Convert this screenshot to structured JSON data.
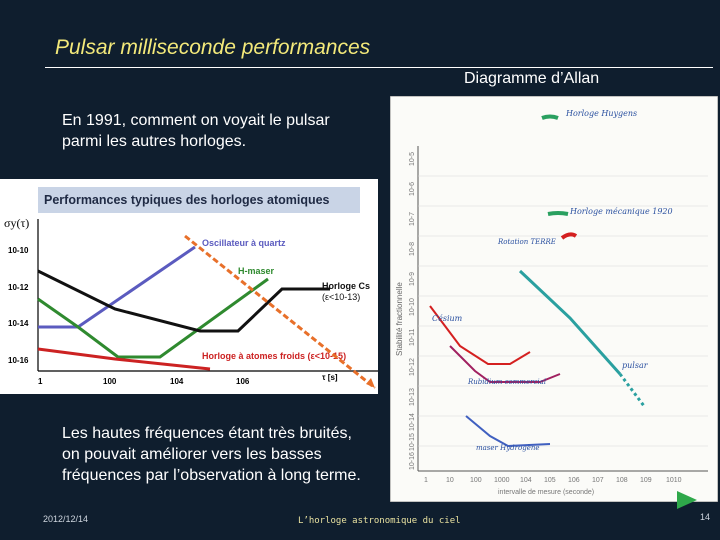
{
  "slide": {
    "title": "Pulsar milliseconde performances",
    "right_label": "Diagramme d’Allan",
    "paragraph_1": "En 1991, comment on voyait le pulsar parmi les autres horloges.",
    "paragraph_2": "Les hautes fréquences étant très bruités, on pouvait améliorer vers les basses fréquences par l’observation à long terme.",
    "footer_date": "2012/12/14",
    "footer_center": "L’horloge astronomique du ciel",
    "page_number": "14"
  },
  "left_figure": {
    "title": "Performances typiques des horloges atomiques",
    "y_axis_label": "σy(τ)",
    "x_axis_label": "τ [s]",
    "y_ticks": [
      "10-10",
      "10-12",
      "10-14",
      "10-16"
    ],
    "x_ticks": [
      "1",
      "100",
      "104",
      "106"
    ],
    "labels": {
      "quartz": "Oscillateur à quartz",
      "hmaser": "H-maser",
      "cesium_1": "Horloge Cs",
      "cesium_2": "(ε<10-13)",
      "cold": "Horloge à atomes froids (ε<10-15)"
    },
    "colors": {
      "quartz": "#5b5bbf",
      "hmaser": "#2f8a2f",
      "cesium": "#111111",
      "cold": "#cc2222",
      "title_band": "#c9d4e6"
    }
  },
  "right_figure": {
    "y_axis_label": "Stabilité fractionnelle",
    "x_axis_label": "intervalle de mesure (seconde)",
    "y_ticks": [
      "10-5",
      "10-6",
      "10-7",
      "10-8",
      "10-9",
      "10-10",
      "10-11",
      "10-12",
      "10-13",
      "10-14",
      "10-15",
      "10-16"
    ],
    "x_ticks": [
      "1",
      "10",
      "100",
      "1000",
      "104",
      "105",
      "106",
      "107",
      "108",
      "109",
      "1010"
    ],
    "labels": {
      "huygens": "Horloge Huygens",
      "mecanique": "Horloge mécanique 1920",
      "terre": "Rotation TERRE",
      "cesium": "Césium",
      "rubidium": "Rubidium commercial",
      "pulsar": "pulsar",
      "maser": "maser Hydrogène"
    },
    "colors": {
      "huygens": "#2aa060",
      "mecanique": "#2aa060",
      "terre": "#d42020",
      "cesium": "#d42020",
      "rubidium": "#a02060",
      "pulsar": "#2aa0a0",
      "maser": "#4060c0"
    }
  },
  "colors": {
    "background": "#0f1e2e",
    "title": "#f3e97a",
    "accent_orange": "#e8702a",
    "play": "#2ea84a"
  }
}
